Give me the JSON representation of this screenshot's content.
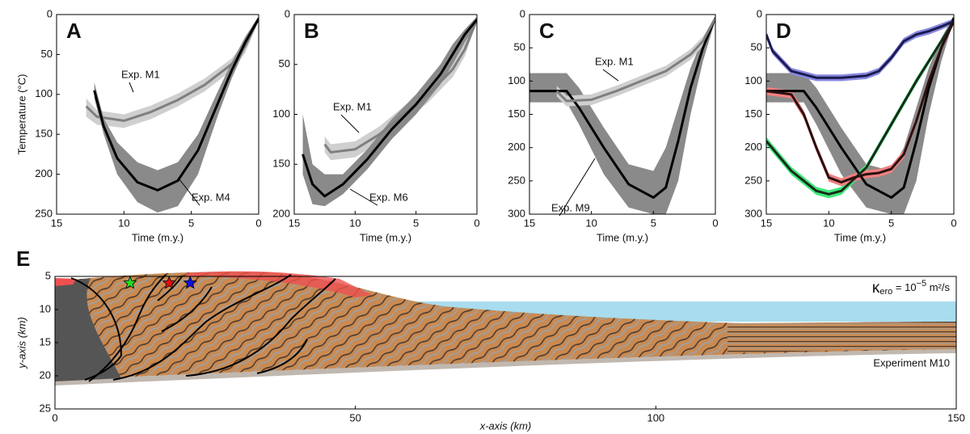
{
  "chart_data": [
    {
      "type": "line",
      "panel": "A",
      "ylabel": "Temperature (°C)",
      "xlabel": "Time (m.y.)",
      "xlim": [
        15,
        0
      ],
      "xticks": [
        15,
        10,
        5,
        0
      ],
      "ylim": [
        0,
        250
      ],
      "yticks": [
        0,
        50,
        100,
        150,
        200,
        250
      ],
      "y_inverted": true,
      "series": [
        {
          "name": "Exp. M1",
          "color": "#7f7f7f",
          "band_color": "#cfcfcf",
          "x": [
            12.8,
            12,
            10,
            8,
            6,
            4,
            2,
            1,
            0
          ],
          "values": [
            115,
            128,
            133,
            122,
            107,
            88,
            62,
            40,
            5
          ],
          "lower": [
            105,
            120,
            125,
            114,
            99,
            80,
            55,
            33,
            2
          ],
          "upper": [
            128,
            138,
            142,
            131,
            115,
            96,
            70,
            48,
            8
          ]
        },
        {
          "name": "Exp. M4",
          "color": "#000000",
          "band_color": "#8a8a8a",
          "x": [
            12.2,
            11.5,
            10.5,
            9,
            7.5,
            6,
            4.5,
            3,
            2,
            1,
            0
          ],
          "values": [
            95,
            140,
            180,
            210,
            220,
            208,
            170,
            110,
            70,
            35,
            5
          ],
          "lower": [
            85,
            130,
            160,
            185,
            195,
            185,
            150,
            95,
            60,
            28,
            2
          ],
          "upper": [
            105,
            150,
            200,
            235,
            248,
            240,
            200,
            125,
            80,
            42,
            8
          ]
        }
      ]
    },
    {
      "type": "line",
      "panel": "B",
      "xlabel": "Time (m.y.)",
      "xlim": [
        15,
        0
      ],
      "xticks": [
        15,
        10,
        5,
        0
      ],
      "ylim": [
        0,
        200
      ],
      "yticks": [
        0,
        50,
        100,
        150,
        200
      ],
      "y_inverted": true,
      "series": [
        {
          "name": "Exp. M1",
          "color": "#7f7f7f",
          "band_color": "#cfcfcf",
          "x": [
            12.5,
            12,
            10,
            8,
            6,
            4,
            2,
            1,
            0
          ],
          "values": [
            130,
            138,
            135,
            120,
            100,
            80,
            55,
            35,
            5
          ],
          "lower": [
            122,
            130,
            127,
            112,
            92,
            72,
            47,
            28,
            2
          ],
          "upper": [
            138,
            146,
            143,
            128,
            108,
            88,
            63,
            42,
            8
          ]
        },
        {
          "name": "Exp. M6",
          "color": "#000000",
          "band_color": "#8a8a8a",
          "x": [
            14.3,
            13.5,
            12.5,
            11,
            9,
            7,
            5,
            3,
            2,
            1,
            0
          ],
          "values": [
            140,
            170,
            182,
            170,
            145,
            115,
            90,
            60,
            40,
            20,
            5
          ],
          "lower": [
            100,
            150,
            160,
            160,
            135,
            105,
            80,
            50,
            30,
            15,
            2
          ],
          "upper": [
            160,
            190,
            192,
            180,
            155,
            125,
            100,
            70,
            50,
            28,
            8
          ]
        }
      ]
    },
    {
      "type": "line",
      "panel": "C",
      "xlabel": "Time (m.y.)",
      "xlim": [
        15,
        0
      ],
      "xticks": [
        15,
        10,
        5,
        0
      ],
      "ylim": [
        0,
        300
      ],
      "yticks": [
        0,
        50,
        100,
        150,
        200,
        250,
        300
      ],
      "y_inverted": true,
      "series": [
        {
          "name": "Exp. M9",
          "color": "#000000",
          "band_color": "#8a8a8a",
          "x": [
            15,
            12,
            11,
            9,
            7,
            5,
            4,
            3,
            2,
            1,
            0
          ],
          "values": [
            115,
            115,
            140,
            200,
            255,
            275,
            260,
            190,
            110,
            50,
            5
          ],
          "lower": [
            88,
            88,
            110,
            170,
            225,
            235,
            200,
            140,
            80,
            35,
            2
          ],
          "upper": [
            132,
            132,
            165,
            240,
            290,
            300,
            300,
            250,
            150,
            70,
            8
          ]
        },
        {
          "name": "Exp. M1",
          "color": "#7f7f7f",
          "band_color": "#cfcfcf",
          "x": [
            12.8,
            12,
            10,
            8,
            6,
            4,
            2,
            1,
            0
          ],
          "values": [
            115,
            130,
            128,
            115,
            100,
            85,
            60,
            40,
            5
          ],
          "lower": [
            107,
            122,
            120,
            107,
            92,
            77,
            52,
            33,
            2
          ],
          "upper": [
            123,
            138,
            136,
            123,
            108,
            93,
            68,
            47,
            8
          ]
        }
      ]
    },
    {
      "type": "line",
      "panel": "D",
      "xlabel": "Time (m.y.)",
      "xlim": [
        15,
        0
      ],
      "xticks": [
        15,
        10,
        5,
        0
      ],
      "ylim": [
        0,
        300
      ],
      "yticks": [
        0,
        50,
        100,
        150,
        200,
        250,
        300
      ],
      "y_inverted": true,
      "series": [
        {
          "color": "#000000",
          "band_color": "#8a8a8a",
          "x": [
            15,
            12,
            11,
            9,
            7,
            5,
            4,
            3,
            2,
            1,
            0
          ],
          "values": [
            115,
            115,
            140,
            200,
            255,
            275,
            260,
            190,
            110,
            50,
            5
          ],
          "lower": [
            88,
            88,
            110,
            170,
            225,
            235,
            200,
            140,
            80,
            35,
            2
          ],
          "upper": [
            132,
            132,
            165,
            240,
            290,
            300,
            300,
            250,
            150,
            70,
            8
          ]
        },
        {
          "color": "#1a1a50",
          "band_color": "#8a8ae0",
          "x": [
            15,
            14.5,
            13,
            11,
            9,
            7,
            6,
            5,
            4,
            3,
            2,
            1,
            0
          ],
          "values": [
            30,
            55,
            85,
            95,
            95,
            92,
            85,
            65,
            40,
            30,
            25,
            18,
            10
          ],
          "lower": [
            25,
            50,
            80,
            90,
            90,
            87,
            80,
            60,
            35,
            25,
            20,
            13,
            6
          ],
          "upper": [
            35,
            60,
            90,
            100,
            100,
            97,
            90,
            70,
            45,
            35,
            30,
            23,
            14
          ]
        },
        {
          "color": "#1a2a1a",
          "band_color": "#3ee87a",
          "x": [
            15,
            13,
            11,
            10,
            9,
            7,
            5,
            3,
            1,
            0
          ],
          "values": [
            190,
            235,
            265,
            270,
            265,
            230,
            165,
            100,
            40,
            10
          ],
          "lower": [
            184,
            229,
            259,
            264,
            259,
            225,
            160,
            95,
            36,
            6
          ],
          "upper": [
            196,
            241,
            271,
            276,
            271,
            235,
            170,
            105,
            44,
            14
          ]
        },
        {
          "color": "#2a1010",
          "band_color": "#f08080",
          "x": [
            15,
            13,
            12,
            11,
            10,
            9,
            8,
            7,
            6,
            5,
            4,
            3,
            2,
            1,
            0
          ],
          "values": [
            115,
            120,
            150,
            200,
            245,
            252,
            245,
            240,
            238,
            232,
            210,
            160,
            100,
            50,
            10
          ],
          "lower": [
            109,
            114,
            144,
            194,
            239,
            246,
            239,
            234,
            232,
            226,
            204,
            154,
            94,
            45,
            6
          ],
          "upper": [
            121,
            126,
            156,
            206,
            251,
            258,
            251,
            246,
            244,
            238,
            216,
            166,
            106,
            55,
            14
          ]
        }
      ]
    },
    {
      "type": "section",
      "panel": "E",
      "xlabel": "x-axis (km)",
      "ylabel": "y-axis (km)",
      "xlim": [
        0,
        150
      ],
      "xticks": [
        0,
        50,
        100,
        150
      ],
      "ylim": [
        5,
        25
      ],
      "yticks": [
        5,
        10,
        15,
        20,
        25
      ],
      "y_inverted": true,
      "markers": [
        {
          "x": 12.5,
          "y": 6,
          "color": "#22e022"
        },
        {
          "x": 19,
          "y": 6,
          "color": "#e01010"
        },
        {
          "x": 22.5,
          "y": 6,
          "color": "#1010e0"
        }
      ],
      "annotation": {
        "symbol": "κ",
        "subscript": "ero",
        "equals": " = 10",
        "exponent": "−5",
        "unit": " m²/s"
      },
      "experiment": "Experiment M10"
    }
  ]
}
